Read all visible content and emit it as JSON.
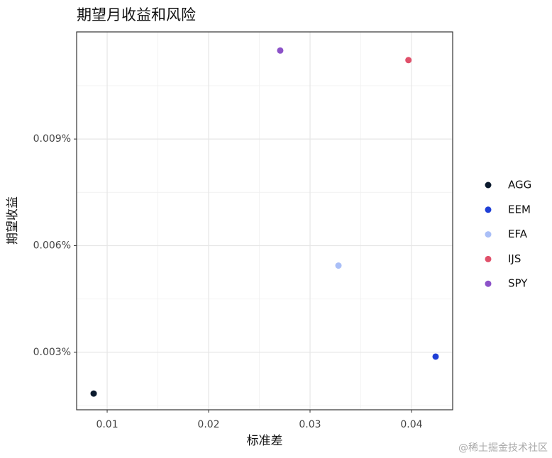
{
  "chart_data": {
    "type": "scatter",
    "title": "期望月收益和风险",
    "x_label": "标准差",
    "y_label": "期望收益",
    "xlim": [
      0.00699,
      0.04406
    ],
    "xticks": [
      0.01,
      0.02,
      0.03,
      0.04
    ],
    "ylim": [
      0.001383,
      0.012014
    ],
    "yticks": [
      {
        "value": 0.003,
        "label": "0.003%"
      },
      {
        "value": 0.006,
        "label": "0.006%"
      },
      {
        "value": 0.009,
        "label": "0.009%"
      }
    ],
    "grid": true,
    "legend": "right",
    "series": [
      {
        "name": "AGG",
        "color": "#0b1a2e",
        "x": [
          0.00867
        ],
        "values": [
          0.00184
        ]
      },
      {
        "name": "EEM",
        "color": "#1f3fd6",
        "x": [
          0.04238
        ],
        "values": [
          0.00288
        ]
      },
      {
        "name": "EFA",
        "color": "#aabff7",
        "x": [
          0.0328
        ],
        "values": [
          0.00544
        ]
      },
      {
        "name": "IJS",
        "color": "#e0506a",
        "x": [
          0.0397
        ],
        "values": [
          0.01122
        ]
      },
      {
        "name": "SPY",
        "color": "#8c52c8",
        "x": [
          0.02706
        ],
        "values": [
          0.01149
        ]
      }
    ],
    "watermark": "@稀土掘金技术社区"
  }
}
